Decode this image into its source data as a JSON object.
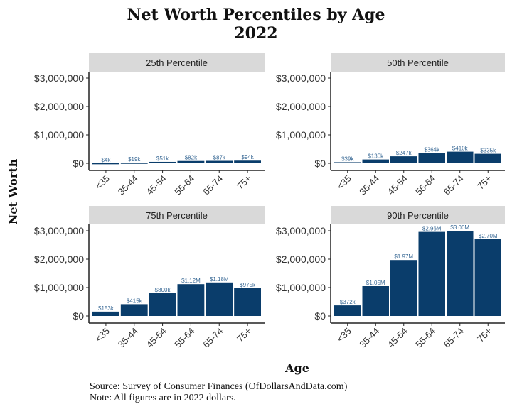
{
  "chart_data": [
    {
      "type": "bar",
      "title": "25th Percentile",
      "categories": [
        "<35",
        "35-44",
        "45-54",
        "55-64",
        "65-74",
        "75+"
      ],
      "values": [
        4000,
        19000,
        51000,
        82000,
        87000,
        94000
      ],
      "labels": [
        "$4k",
        "$19k",
        "$51k",
        "$82k",
        "$87k",
        "$94k"
      ]
    },
    {
      "type": "bar",
      "title": "50th Percentile",
      "categories": [
        "<35",
        "35-44",
        "45-54",
        "55-64",
        "65-74",
        "75+"
      ],
      "values": [
        39000,
        135000,
        247000,
        364000,
        410000,
        335000
      ],
      "labels": [
        "$39k",
        "$135k",
        "$247k",
        "$364k",
        "$410k",
        "$335k"
      ]
    },
    {
      "type": "bar",
      "title": "75th Percentile",
      "categories": [
        "<35",
        "35-44",
        "45-54",
        "55-64",
        "65-74",
        "75+"
      ],
      "values": [
        153000,
        415000,
        800000,
        1120000,
        1180000,
        975000
      ],
      "labels": [
        "$153k",
        "$415k",
        "$800k",
        "$1.12M",
        "$1.18M",
        "$975k"
      ]
    },
    {
      "type": "bar",
      "title": "90th Percentile",
      "categories": [
        "<35",
        "35-44",
        "45-54",
        "55-64",
        "65-74",
        "75+"
      ],
      "values": [
        372000,
        1050000,
        1970000,
        2960000,
        3000000,
        2700000
      ],
      "labels": [
        "$372k",
        "$1.05M",
        "$1.97M",
        "$2.96M",
        "$3.00M",
        "$2.70M"
      ]
    }
  ],
  "shared": {
    "ylim": [
      0,
      3000000
    ],
    "yticks": [
      "$0",
      "$1,000,000",
      "$2,000,000",
      "$3,000,000"
    ],
    "xlabel": "Age",
    "ylabel": "Net Worth",
    "bar_color": "#0a3d6b",
    "strip_color": "#d9d9d9",
    "grid": false
  },
  "title_line1": "Net Worth Percentiles by Age",
  "title_line2": "2022",
  "source": "Source:  Survey of Consumer Finances (OfDollarsAndData.com)",
  "note": "Note: All figures are in 2022 dollars."
}
